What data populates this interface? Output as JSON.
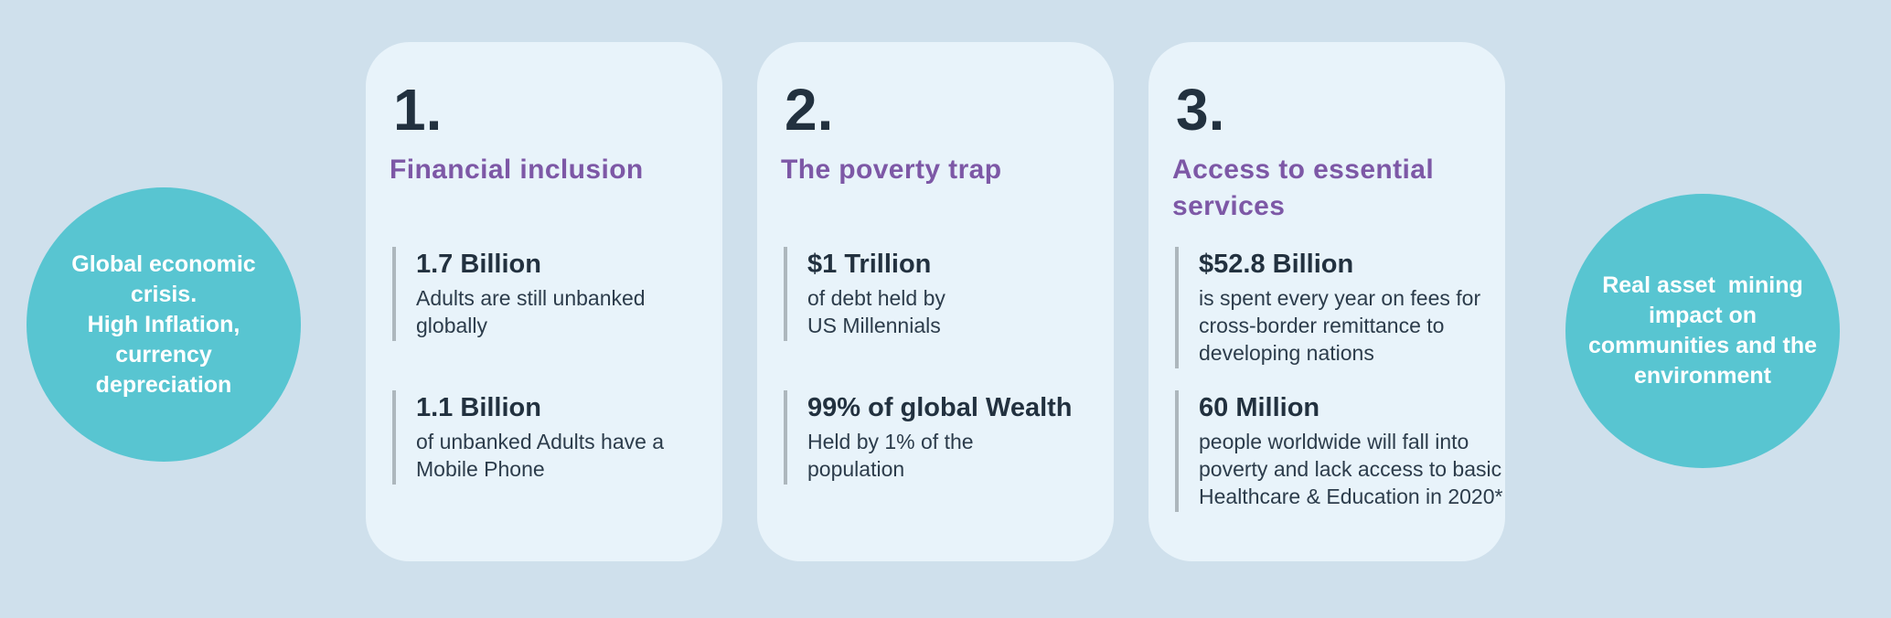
{
  "colors": {
    "background": "#cfe0ec",
    "card": "#e8f3fa",
    "circle_teal": "#58c5d1",
    "circle_text": "#ffffff",
    "heading_purple": "#7d58a6",
    "dark_navy": "#22313f",
    "body_text": "#2c3c4b",
    "stat_bar_gray": "#adb7bd"
  },
  "left_circle": {
    "lines": [
      "Global economic",
      "crisis.",
      "High Inflation,",
      "currency",
      "depreciation"
    ]
  },
  "right_circle": {
    "lines": [
      "Real asset  mining",
      "impact on",
      "communities and the",
      "environment"
    ]
  },
  "cards": [
    {
      "number": "1.",
      "title": "Financial inclusion",
      "stats": [
        {
          "value": "1.7 Billion",
          "desc_lines": [
            "Adults are still unbanked",
            "globally"
          ]
        },
        {
          "value": "1.1 Billion",
          "desc_lines": [
            "of unbanked Adults have a",
            "Mobile Phone"
          ]
        }
      ]
    },
    {
      "number": "2.",
      "title": "The poverty trap",
      "stats": [
        {
          "value": "$1 Trillion",
          "desc_lines": [
            "of debt held by",
            "US Millennials"
          ]
        },
        {
          "value": "99% of global Wealth",
          "desc_lines": [
            "Held by 1% of the",
            "population"
          ]
        }
      ]
    },
    {
      "number": "3.",
      "title": "Access to essential services",
      "stats": [
        {
          "value": "$52.8 Billion",
          "desc_lines": [
            "is spent every year on fees for",
            "cross-border remittance to",
            "developing nations"
          ]
        },
        {
          "value": "60 Million",
          "desc_lines": [
            "people worldwide will fall into",
            "poverty and lack access to basic",
            "Healthcare & Education in 2020*"
          ]
        }
      ]
    }
  ]
}
